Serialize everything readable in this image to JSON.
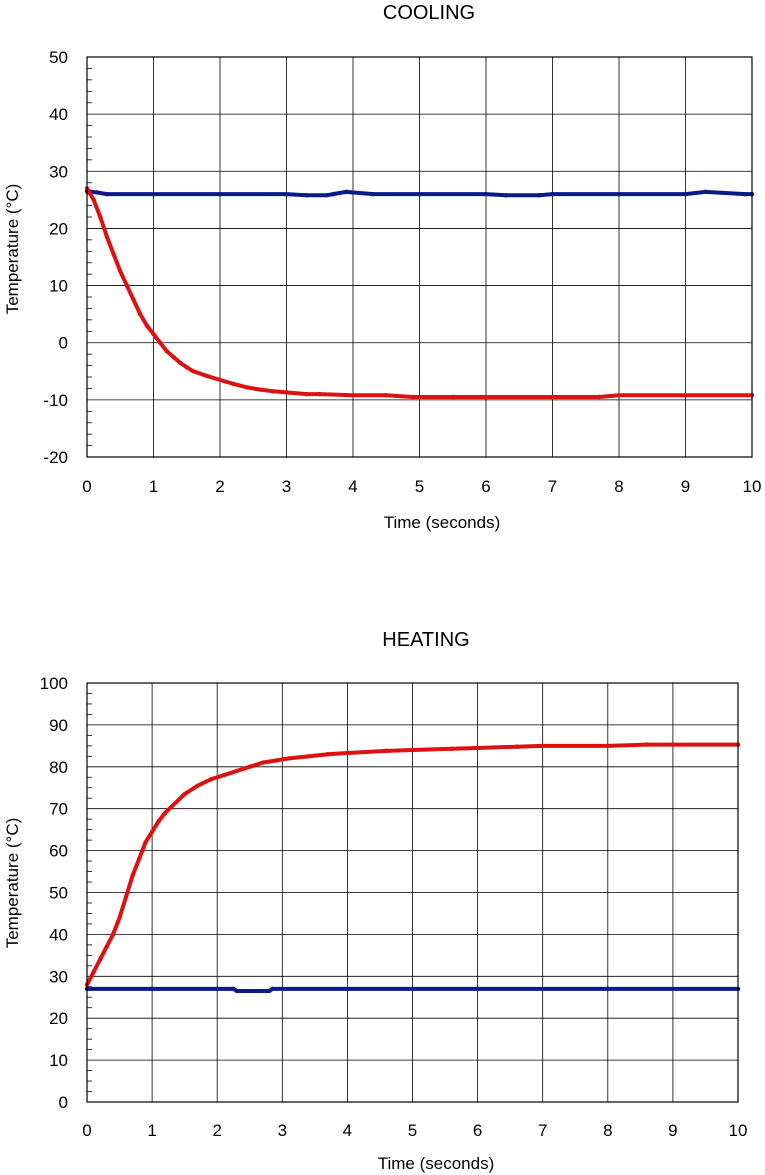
{
  "chart_data": [
    {
      "type": "line",
      "title": "COOLING",
      "xlabel": "Time (seconds)",
      "ylabel": "Temperature  (°C)",
      "xlim": [
        0,
        10
      ],
      "ylim": [
        -20,
        50
      ],
      "x_ticks": [
        0,
        1,
        2,
        3,
        4,
        5,
        6,
        7,
        8,
        9,
        10
      ],
      "y_ticks": [
        -20,
        -10,
        0,
        10,
        20,
        30,
        40,
        50
      ],
      "grid": true,
      "series": [
        {
          "color": "#0a1a8c",
          "x": [
            0,
            0.15,
            0.3,
            1,
            2,
            3,
            3.3,
            3.6,
            3.7,
            3.9,
            4.3,
            5,
            6,
            6.3,
            6.8,
            7,
            8,
            9,
            9.3,
            9.9,
            10
          ],
          "y": [
            26.5,
            26.3,
            26.0,
            26.0,
            26.0,
            26.0,
            25.8,
            25.8,
            26.0,
            26.4,
            26.0,
            26.0,
            26.0,
            25.8,
            25.8,
            26.0,
            26.0,
            26.0,
            26.4,
            26.0,
            26.0
          ]
        },
        {
          "color": "#dd1111",
          "x": [
            0,
            0.1,
            0.2,
            0.3,
            0.4,
            0.5,
            0.6,
            0.7,
            0.8,
            0.9,
            1.0,
            1.1,
            1.2,
            1.3,
            1.4,
            1.5,
            1.6,
            1.8,
            2.0,
            2.2,
            2.4,
            2.6,
            2.8,
            3.0,
            3.3,
            3.5,
            4.0,
            4.5,
            4.9,
            5.5,
            6.0,
            7.0,
            7.7,
            8.0,
            9.0,
            10.0
          ],
          "y": [
            27.0,
            25.0,
            22.0,
            18.5,
            15.5,
            12.5,
            10.0,
            7.5,
            5.0,
            3.0,
            1.5,
            0.0,
            -1.5,
            -2.5,
            -3.5,
            -4.3,
            -5.0,
            -5.8,
            -6.5,
            -7.2,
            -7.8,
            -8.2,
            -8.5,
            -8.7,
            -9.0,
            -9.0,
            -9.2,
            -9.2,
            -9.5,
            -9.5,
            -9.5,
            -9.5,
            -9.5,
            -9.2,
            -9.2,
            -9.2
          ]
        }
      ]
    },
    {
      "type": "line",
      "title": "HEATING",
      "xlabel": "Time (seconds)",
      "ylabel": "Temperature  (°C)",
      "xlim": [
        0,
        10
      ],
      "ylim": [
        0,
        100
      ],
      "x_ticks": [
        0,
        1,
        2,
        3,
        4,
        5,
        6,
        7,
        8,
        9,
        10
      ],
      "y_ticks": [
        0,
        10,
        20,
        30,
        40,
        50,
        60,
        70,
        80,
        90,
        100
      ],
      "grid": true,
      "series": [
        {
          "color": "#0a1a8c",
          "x": [
            0,
            1,
            2,
            2.25,
            2.3,
            2.8,
            2.85,
            4,
            6,
            8,
            10
          ],
          "y": [
            27.0,
            27.0,
            27.0,
            27.0,
            26.5,
            26.5,
            27.0,
            27.0,
            27.0,
            27.0,
            27.0
          ]
        },
        {
          "color": "#dd1111",
          "x": [
            0,
            0.1,
            0.2,
            0.3,
            0.4,
            0.5,
            0.6,
            0.7,
            0.8,
            0.9,
            1.0,
            1.1,
            1.2,
            1.3,
            1.5,
            1.7,
            1.9,
            2.1,
            2.3,
            2.5,
            2.7,
            2.9,
            3.1,
            3.4,
            3.7,
            4.0,
            4.6,
            5.0,
            5.6,
            6.0,
            6.6,
            7.0,
            8.0,
            8.6,
            9.0,
            10.0
          ],
          "y": [
            28.0,
            31.0,
            34.0,
            37.0,
            40.0,
            44.0,
            49.0,
            54.0,
            58.0,
            62.0,
            64.5,
            67.0,
            69.0,
            70.5,
            73.5,
            75.5,
            77.0,
            78.0,
            79.0,
            80.0,
            81.0,
            81.5,
            82.0,
            82.5,
            83.0,
            83.3,
            83.8,
            84.0,
            84.3,
            84.5,
            84.8,
            85.0,
            85.0,
            85.3,
            85.3,
            85.3
          ]
        }
      ]
    }
  ]
}
